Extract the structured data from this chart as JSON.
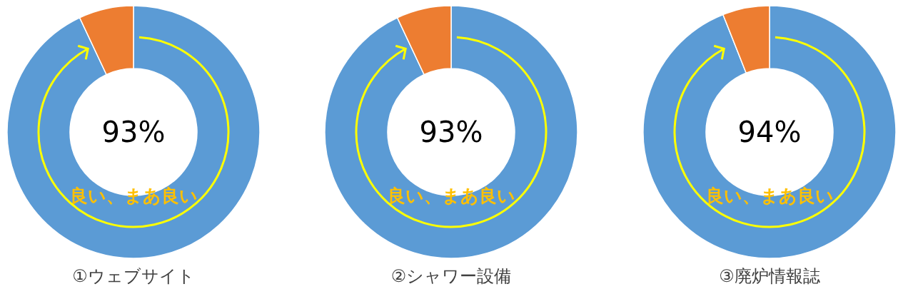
{
  "chart_data": [
    {
      "type": "donut",
      "title": "①ウェブサイト",
      "categories": [
        "良い、まあ良い",
        null
      ],
      "values": [
        93,
        7
      ],
      "colors": [
        "#5b9bd5",
        "#ed7d31"
      ],
      "value_labels": [
        "93%",
        null
      ]
    },
    {
      "type": "donut",
      "title": "②シャワー設備",
      "categories": [
        "良い、まあ良い",
        null
      ],
      "values": [
        93,
        7
      ],
      "colors": [
        "#5b9bd5",
        "#ed7d31"
      ],
      "value_labels": [
        "93%",
        null
      ]
    },
    {
      "type": "donut",
      "title": "③廃炉情報誌",
      "categories": [
        "良い、まあ良い",
        null
      ],
      "values": [
        94,
        6
      ],
      "colors": [
        "#5b9bd5",
        "#ed7d31"
      ],
      "value_labels": [
        "94%",
        null
      ]
    }
  ]
}
